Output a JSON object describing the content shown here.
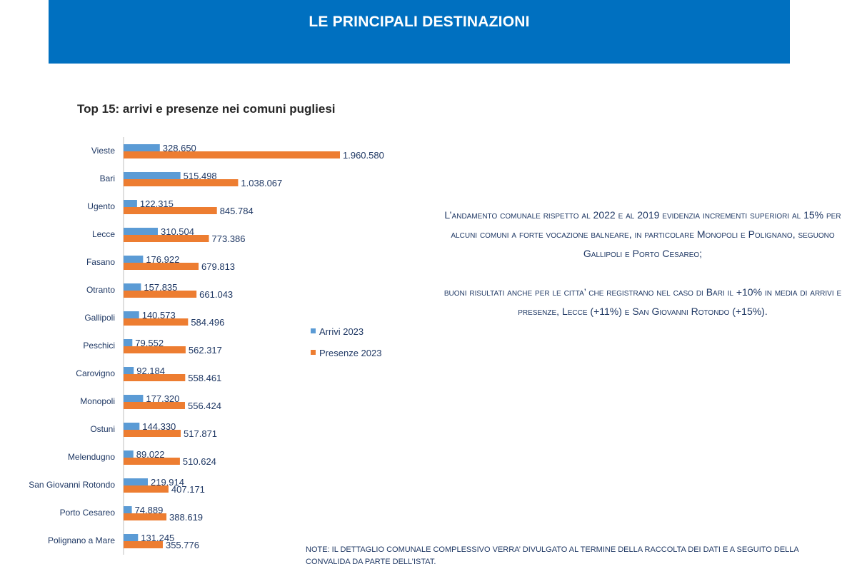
{
  "banner": {
    "title": "LE PRINCIPALI DESTINAZIONI"
  },
  "chart_title": "Top 15: arrivi e presenze nei comuni pugliesi",
  "chart_data": {
    "type": "bar",
    "orientation": "horizontal",
    "title": "Top 15: arrivi e presenze nei comuni pugliesi",
    "categories": [
      "Vieste",
      "Bari",
      "Ugento",
      "Lecce",
      "Fasano",
      "Otranto",
      "Gallipoli",
      "Peschici",
      "Carovigno",
      "Monopoli",
      "Ostuni",
      "Melendugno",
      "San Giovanni Rotondo",
      "Porto Cesareo",
      "Polignano a Mare"
    ],
    "series": [
      {
        "name": "Arrivi 2023",
        "color": "#5b9bd5",
        "values": [
          328650,
          515498,
          122315,
          310504,
          176922,
          157835,
          140573,
          79552,
          92184,
          177320,
          144330,
          89022,
          219914,
          74889,
          131245
        ],
        "labels": [
          "328.650",
          "515.498",
          "122.315",
          "310.504",
          "176.922",
          "157.835",
          "140.573",
          "79.552",
          "92.184",
          "177.320",
          "144.330",
          "89.022",
          "219.914",
          "74.889",
          "131.245"
        ]
      },
      {
        "name": "Presenze 2023",
        "color": "#ed7d31",
        "values": [
          1960580,
          1038067,
          845784,
          773386,
          679813,
          661043,
          584496,
          562317,
          558461,
          556424,
          517871,
          510624,
          407171,
          388619,
          355776
        ],
        "labels": [
          "1.960.580",
          "1.038.067",
          "845.784",
          "773.386",
          "679.813",
          "661.043",
          "584.496",
          "562.317",
          "558.461",
          "556.424",
          "517.871",
          "510.624",
          "407.171",
          "388.619",
          "355.776"
        ]
      }
    ],
    "legend_position": "right",
    "grid": false
  },
  "commentary": [
    "L’andamento comunale rispetto al 2022 e al 2019 evidenzia incrementi superiori al 15% per alcuni comuni a forte vocazione balneare, in particolare Monopoli e Polignano, seguono Gallipoli e Porto Cesareo;",
    "buoni risultati anche per le citta’ che registrano nel caso di Bari il +10% in media di arrivi e presenze, Lecce (+11%) e San Giovanni Rotondo (+15%)."
  ],
  "note": "NOTE: IL DETTAGLIO COMUNALE COMPLESSIVO VERRA’ DIVULGATO AL TERMINE DELLA RACCOLTA DEI DATI E A SEGUITO DELLA CONVALIDA DA PARTE DELL’ISTAT."
}
